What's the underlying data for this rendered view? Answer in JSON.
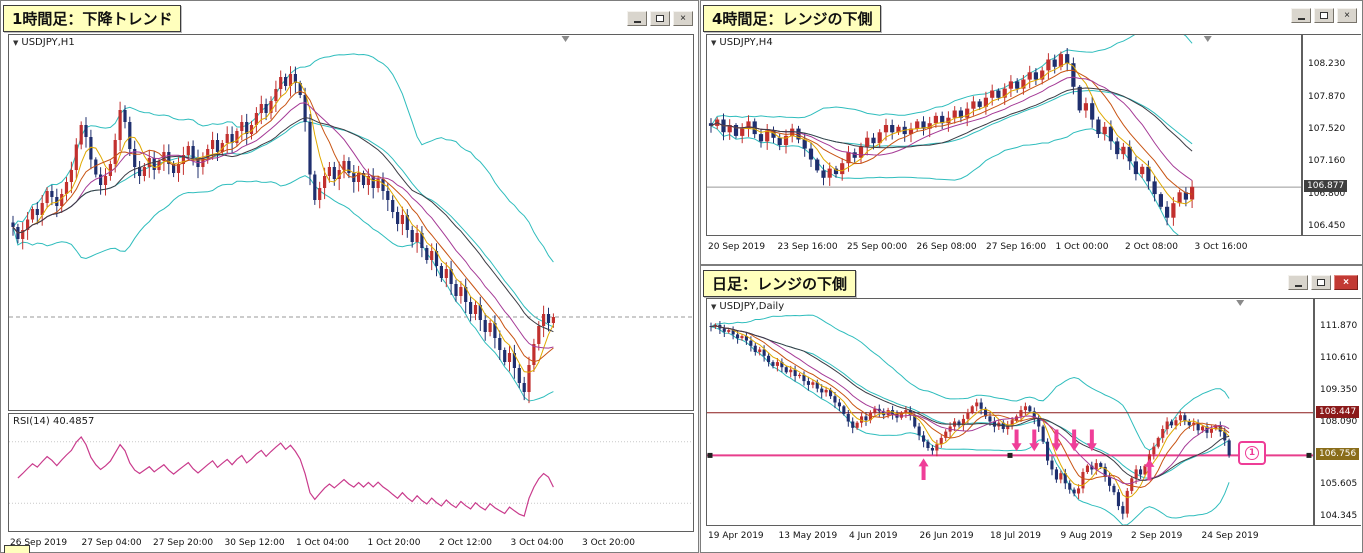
{
  "annotations": {
    "h1": "1時間足：下降トレンド",
    "h4": "4時間足：レンジの下側",
    "d1": "日足：レンジの下側",
    "circle_marker": "1"
  },
  "ui": {
    "icons": {
      "minimize": "minimize",
      "restore": "restore",
      "close": "×"
    }
  },
  "colors": {
    "bull": "#c2302e",
    "bear": "#1f2f6e",
    "bollinger": "#2fbdbd",
    "ma_fast": "#dfa900",
    "ma_mid1": "#c85413",
    "ma_mid2": "#a53a96",
    "ma_slow": "#3c3c44",
    "rsi": "#c93b8c",
    "arrow": "#ef3e98",
    "current": "#999999",
    "badge_current": "#3f3f3f",
    "badge_resistance": "#8b1a1a",
    "badge_support": "#8a6d1a"
  },
  "chart_data": [
    {
      "id": "h1",
      "type": "candlestick",
      "symbol": "USDJPY,H1",
      "timeframe": "H1",
      "y_range": [
        108.78,
        106.28
      ],
      "current_price": 106.9,
      "x_labels": [
        "26 Sep 2019",
        "27 Sep 04:00",
        "27 Sep 20:00",
        "30 Sep 12:00",
        "1 Oct 04:00",
        "1 Oct 20:00",
        "2 Oct 12:00",
        "3 Oct 04:00",
        "3 Oct 20:00"
      ],
      "closes": [
        107.5,
        107.42,
        107.48,
        107.55,
        107.62,
        107.58,
        107.66,
        107.74,
        107.7,
        107.64,
        107.72,
        107.8,
        107.88,
        108.05,
        108.18,
        108.1,
        107.95,
        107.85,
        107.78,
        107.84,
        107.92,
        108.08,
        108.28,
        108.2,
        108.02,
        107.9,
        107.84,
        107.9,
        107.96,
        107.88,
        107.94,
        108.0,
        107.92,
        107.86,
        107.92,
        107.98,
        108.04,
        107.96,
        107.9,
        107.96,
        108.02,
        108.08,
        108.0,
        108.06,
        108.12,
        108.06,
        108.14,
        108.2,
        108.12,
        108.18,
        108.26,
        108.32,
        108.26,
        108.34,
        108.42,
        108.5,
        108.44,
        108.52,
        108.46,
        108.38,
        108.2,
        107.85,
        107.68,
        107.76,
        107.84,
        107.9,
        107.82,
        107.88,
        107.94,
        107.86,
        107.8,
        107.86,
        107.78,
        107.84,
        107.76,
        107.82,
        107.74,
        107.68,
        107.6,
        107.52,
        107.58,
        107.48,
        107.4,
        107.46,
        107.36,
        107.28,
        107.34,
        107.24,
        107.16,
        107.22,
        107.12,
        107.04,
        107.1,
        107.0,
        106.92,
        106.98,
        106.88,
        106.8,
        106.86,
        106.76,
        106.68,
        106.6,
        106.66,
        106.56,
        106.46,
        106.4,
        106.58,
        106.72,
        106.84,
        106.92,
        106.86,
        106.9
      ],
      "indicators": {
        "rsi_label": "RSI(14) 40.4857",
        "rsi_value": 40.4857,
        "bollinger_period": 24,
        "ma_periods": [
          5,
          9,
          14,
          22
        ]
      }
    },
    {
      "id": "h4",
      "type": "candlestick",
      "symbol": "USDJPY,H4",
      "timeframe": "H4",
      "y_range": [
        108.55,
        106.35
      ],
      "current_price": 106.877,
      "x_labels": [
        "20 Sep 2019",
        "23 Sep 16:00",
        "25 Sep 00:00",
        "26 Sep 08:00",
        "27 Sep 16:00",
        "1 Oct 00:00",
        "2 Oct 08:00",
        "3 Oct 16:00"
      ],
      "y_ticks": [
        "108.230",
        "107.870",
        "107.520",
        "107.160",
        "106.800",
        "106.450"
      ],
      "badges": [
        {
          "text": "106.877",
          "price": 106.877,
          "bg": "#3f3f3f"
        }
      ],
      "closes": [
        107.55,
        107.62,
        107.48,
        107.56,
        107.44,
        107.52,
        107.6,
        107.46,
        107.38,
        107.5,
        107.42,
        107.34,
        107.44,
        107.52,
        107.4,
        107.3,
        107.18,
        107.06,
        106.98,
        107.08,
        107.02,
        107.14,
        107.26,
        107.2,
        107.32,
        107.42,
        107.36,
        107.48,
        107.56,
        107.48,
        107.54,
        107.46,
        107.52,
        107.6,
        107.52,
        107.58,
        107.66,
        107.58,
        107.64,
        107.72,
        107.64,
        107.74,
        107.82,
        107.76,
        107.86,
        107.94,
        107.86,
        107.96,
        108.04,
        107.96,
        108.06,
        108.14,
        108.06,
        108.16,
        108.28,
        108.2,
        108.34,
        108.24,
        107.98,
        107.72,
        107.8,
        107.62,
        107.46,
        107.54,
        107.38,
        107.24,
        107.32,
        107.16,
        107.02,
        107.1,
        106.94,
        106.8,
        106.66,
        106.54,
        106.7,
        106.82,
        106.74,
        106.88
      ],
      "indicators": {
        "bollinger_period": 24,
        "ma_periods": [
          5,
          9,
          14,
          22
        ]
      }
    },
    {
      "id": "d1",
      "type": "candlestick",
      "symbol": "USDJPY,Daily",
      "timeframe": "Daily",
      "y_range": [
        112.95,
        104.0
      ],
      "x_labels": [
        "19 Apr 2019",
        "13 May 2019",
        "4 Jun 2019",
        "26 Jun 2019",
        "18 Jul 2019",
        "9 Aug 2019",
        "2 Sep 2019",
        "24 Sep 2019"
      ],
      "y_ticks": [
        "111.870",
        "110.610",
        "109.350",
        "108.090",
        "105.605",
        "104.345"
      ],
      "badges": [
        {
          "text": "108.447",
          "price": 108.447,
          "bg": "#8b1a1a"
        },
        {
          "text": "106.756",
          "price": 106.756,
          "bg": "#8a6d1a"
        }
      ],
      "levels": [
        {
          "price": 108.447,
          "color": "#8b1a1a",
          "width": 1,
          "handles": false
        },
        {
          "price": 106.756,
          "color": "#e83e8c",
          "width": 2,
          "handles": true
        }
      ],
      "arrows": [
        {
          "dir": "up",
          "idx": 48,
          "tip": 106.64,
          "tail": 105.78
        },
        {
          "dir": "up",
          "idx": 99,
          "tip": 106.62,
          "tail": 105.76
        },
        {
          "dir": "down",
          "idx": 69,
          "tip": 106.92,
          "tail": 107.78
        },
        {
          "dir": "down",
          "idx": 73,
          "tip": 106.92,
          "tail": 107.78
        },
        {
          "dir": "down",
          "idx": 78,
          "tip": 106.92,
          "tail": 107.78
        },
        {
          "dir": "down",
          "idx": 82,
          "tip": 106.92,
          "tail": 107.78
        },
        {
          "dir": "down",
          "idx": 86,
          "tip": 106.92,
          "tail": 107.78
        }
      ],
      "closes": [
        111.85,
        111.92,
        111.78,
        111.65,
        111.72,
        111.55,
        111.4,
        111.48,
        111.3,
        111.1,
        110.85,
        110.95,
        110.7,
        110.45,
        110.3,
        110.45,
        110.25,
        110.05,
        110.15,
        109.9,
        109.95,
        109.7,
        109.55,
        109.65,
        109.4,
        109.25,
        109.35,
        109.1,
        108.85,
        108.7,
        108.4,
        108.1,
        107.85,
        108.05,
        108.3,
        108.15,
        108.45,
        108.6,
        108.5,
        108.35,
        108.55,
        108.4,
        108.25,
        108.45,
        108.55,
        108.35,
        107.9,
        107.55,
        107.3,
        107.05,
        106.95,
        107.2,
        107.45,
        107.7,
        107.9,
        108.1,
        107.95,
        108.2,
        108.45,
        108.7,
        108.85,
        108.6,
        108.3,
        108.1,
        107.9,
        108.05,
        107.8,
        107.95,
        108.15,
        108.3,
        108.55,
        108.7,
        108.5,
        108.2,
        107.9,
        107.3,
        106.55,
        106.2,
        105.8,
        106.05,
        105.65,
        105.4,
        105.25,
        105.45,
        106.1,
        106.35,
        106.2,
        106.45,
        106.3,
        105.9,
        105.55,
        105.3,
        104.75,
        104.45,
        105.35,
        105.85,
        106.2,
        106.0,
        106.35,
        106.8,
        107.1,
        107.45,
        107.8,
        108.1,
        107.95,
        108.15,
        108.35,
        108.1,
        107.95,
        108.05,
        107.75,
        107.9,
        107.65,
        107.8,
        107.95,
        107.7,
        107.35,
        106.76
      ],
      "indicators": {
        "bollinger_period": 24,
        "ma_periods": [
          5,
          9,
          14,
          22
        ]
      }
    }
  ]
}
